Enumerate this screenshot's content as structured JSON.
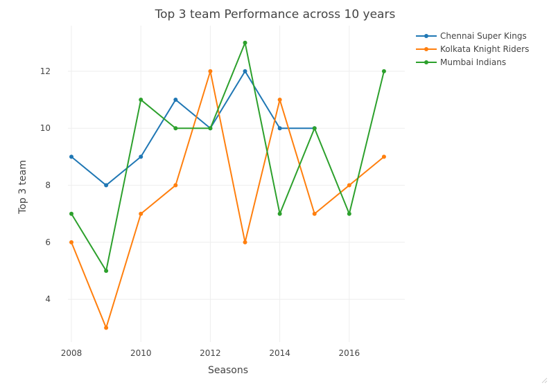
{
  "chart_data": {
    "type": "line",
    "title": "Top 3 team Performance across 10 years",
    "xlabel": "Seasons",
    "ylabel": "Top 3 team",
    "x": [
      2008,
      2009,
      2010,
      2011,
      2012,
      2013,
      2014,
      2015,
      2016,
      2017
    ],
    "xlim": [
      2007.9,
      2017.6
    ],
    "ylim": [
      2.5,
      13.6
    ],
    "xticks": [
      2008,
      2010,
      2012,
      2014,
      2016
    ],
    "yticks": [
      4,
      6,
      8,
      10,
      12
    ],
    "grid": true,
    "legend_position": "top-right",
    "series": [
      {
        "name": "Chennai Super Kings",
        "color": "#1f77b4",
        "values": [
          9,
          8,
          9,
          11,
          10,
          12,
          10,
          10,
          null,
          null
        ]
      },
      {
        "name": "Kolkata Knight Riders",
        "color": "#ff7f0e",
        "values": [
          6,
          3,
          7,
          8,
          12,
          6,
          11,
          7,
          8,
          9
        ]
      },
      {
        "name": "Mumbai Indians",
        "color": "#2ca02c",
        "values": [
          7,
          5,
          11,
          10,
          10,
          13,
          7,
          10,
          7,
          12
        ]
      }
    ]
  }
}
